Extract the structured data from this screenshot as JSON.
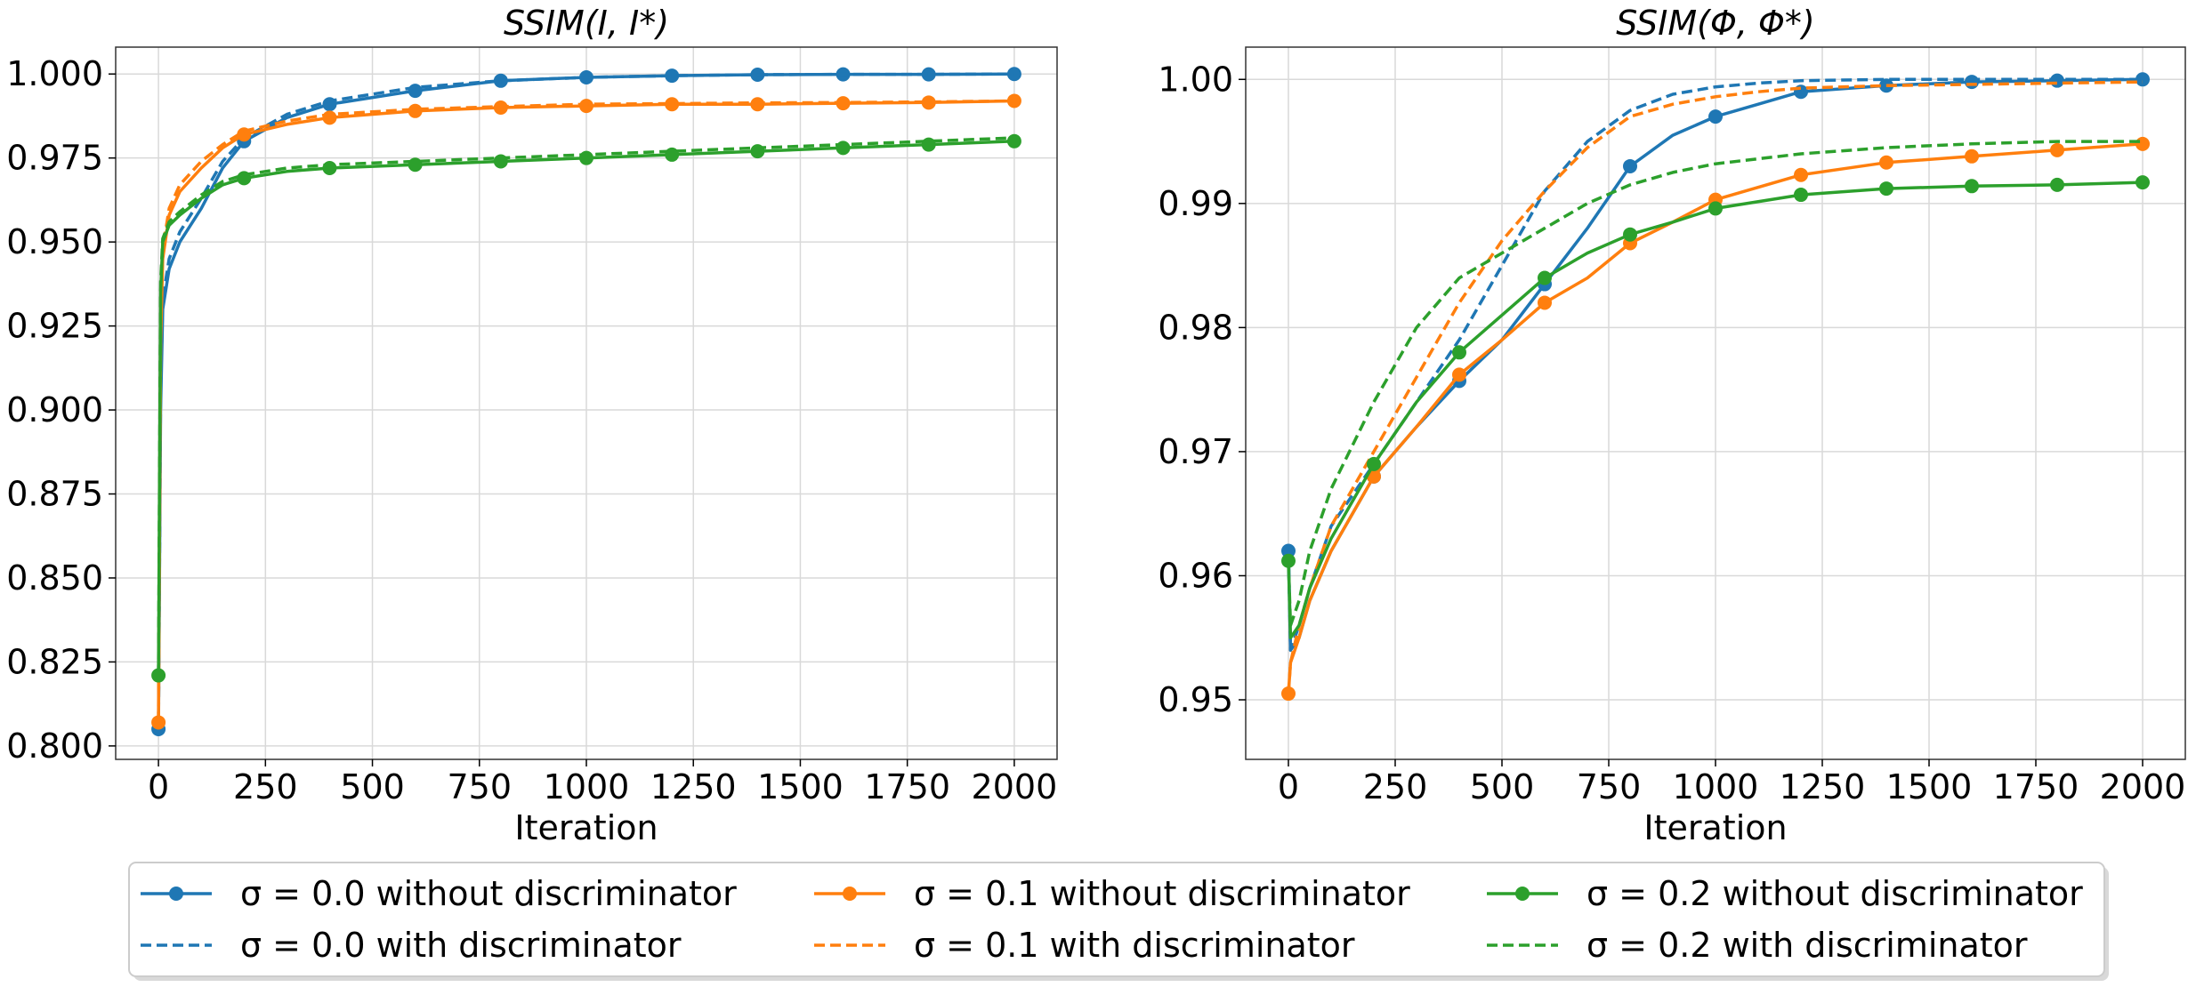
{
  "colors": {
    "s0": "#1f77b4",
    "s1": "#ff7f0e",
    "s2": "#2ca02c",
    "grid": "#d9d9d9",
    "frame": "#333333"
  },
  "legend": {
    "placement": "bottom-center",
    "entries": [
      {
        "label": "σ = 0.0 without discriminator",
        "color": "#1f77b4",
        "style": "solid-marker"
      },
      {
        "label": "σ = 0.0 with discriminator",
        "color": "#1f77b4",
        "style": "dashed"
      },
      {
        "label": "σ = 0.1 without discriminator",
        "color": "#ff7f0e",
        "style": "solid-marker"
      },
      {
        "label": "σ = 0.1 with discriminator",
        "color": "#ff7f0e",
        "style": "dashed"
      },
      {
        "label": "σ = 0.2 without discriminator",
        "color": "#2ca02c",
        "style": "solid-marker"
      },
      {
        "label": "σ = 0.2 with discriminator",
        "color": "#2ca02c",
        "style": "dashed"
      }
    ]
  },
  "chart_data": [
    {
      "type": "line",
      "title": "SSIM(I, I*)",
      "xlabel": "Iteration",
      "ylabel": "",
      "xlim": [
        -100,
        2100
      ],
      "ylim": [
        0.796,
        1.008
      ],
      "xticks": [
        0,
        250,
        500,
        750,
        1000,
        1250,
        1500,
        1750,
        2000
      ],
      "yticks": [
        0.8,
        0.825,
        0.85,
        0.875,
        0.9,
        0.925,
        0.95,
        0.975,
        1.0
      ],
      "ytick_labels": [
        "0.800",
        "0.825",
        "0.850",
        "0.875",
        "0.900",
        "0.925",
        "0.950",
        "0.975",
        "1.000"
      ],
      "grid": true,
      "series": [
        {
          "name": "σ = 0.0 without discriminator",
          "color": "#1f77b4",
          "dashed": false,
          "markers": true,
          "x": [
            0,
            5,
            10,
            25,
            50,
            100,
            150,
            200,
            300,
            400,
            600,
            800,
            1000,
            1200,
            1400,
            1600,
            1800,
            2000
          ],
          "y": [
            0.805,
            0.9,
            0.93,
            0.942,
            0.95,
            0.96,
            0.972,
            0.98,
            0.987,
            0.991,
            0.995,
            0.998,
            0.999,
            0.9995,
            0.9998,
            0.9999,
            0.9999,
            1.0
          ]
        },
        {
          "name": "σ = 0.0 with discriminator",
          "color": "#1f77b4",
          "dashed": true,
          "markers": false,
          "x": [
            0,
            5,
            10,
            25,
            50,
            100,
            150,
            200,
            300,
            400,
            600,
            800,
            1000,
            1200,
            1400,
            1600,
            1800,
            2000
          ],
          "y": [
            0.805,
            0.905,
            0.933,
            0.945,
            0.953,
            0.963,
            0.974,
            0.981,
            0.988,
            0.992,
            0.996,
            0.998,
            0.999,
            0.9995,
            0.9998,
            0.9999,
            0.9999,
            1.0
          ]
        },
        {
          "name": "σ = 0.1 without discriminator",
          "color": "#ff7f0e",
          "dashed": false,
          "markers": true,
          "x": [
            0,
            5,
            10,
            25,
            50,
            100,
            150,
            200,
            300,
            400,
            600,
            800,
            1000,
            1200,
            1400,
            1600,
            1800,
            2000
          ],
          "y": [
            0.807,
            0.92,
            0.945,
            0.958,
            0.965,
            0.972,
            0.978,
            0.982,
            0.985,
            0.987,
            0.989,
            0.99,
            0.9905,
            0.991,
            0.991,
            0.9913,
            0.9915,
            0.992
          ]
        },
        {
          "name": "σ = 0.1 with discriminator",
          "color": "#ff7f0e",
          "dashed": true,
          "markers": false,
          "x": [
            0,
            5,
            10,
            25,
            50,
            100,
            150,
            200,
            300,
            400,
            600,
            800,
            1000,
            1200,
            1400,
            1600,
            1800,
            2000
          ],
          "y": [
            0.807,
            0.925,
            0.948,
            0.96,
            0.967,
            0.974,
            0.979,
            0.983,
            0.986,
            0.988,
            0.9895,
            0.9903,
            0.991,
            0.9912,
            0.9914,
            0.9915,
            0.9917,
            0.992
          ]
        },
        {
          "name": "σ = 0.2 without discriminator",
          "color": "#2ca02c",
          "dashed": false,
          "markers": true,
          "x": [
            0,
            5,
            10,
            25,
            50,
            100,
            150,
            200,
            300,
            400,
            600,
            800,
            1000,
            1200,
            1400,
            1600,
            1800,
            2000
          ],
          "y": [
            0.821,
            0.935,
            0.95,
            0.955,
            0.958,
            0.963,
            0.967,
            0.969,
            0.971,
            0.972,
            0.973,
            0.974,
            0.975,
            0.976,
            0.977,
            0.978,
            0.979,
            0.98
          ]
        },
        {
          "name": "σ = 0.2 with discriminator",
          "color": "#2ca02c",
          "dashed": true,
          "markers": false,
          "x": [
            0,
            5,
            10,
            25,
            50,
            100,
            150,
            200,
            300,
            400,
            600,
            800,
            1000,
            1200,
            1400,
            1600,
            1800,
            2000
          ],
          "y": [
            0.821,
            0.938,
            0.951,
            0.956,
            0.959,
            0.964,
            0.968,
            0.97,
            0.972,
            0.973,
            0.974,
            0.975,
            0.976,
            0.977,
            0.978,
            0.979,
            0.98,
            0.981
          ]
        }
      ]
    },
    {
      "type": "line",
      "title": "SSIM(Φ, Φ*)",
      "xlabel": "Iteration",
      "ylabel": "",
      "xlim": [
        -100,
        2100
      ],
      "ylim": [
        0.9452,
        1.0026
      ],
      "xticks": [
        0,
        250,
        500,
        750,
        1000,
        1250,
        1500,
        1750,
        2000
      ],
      "yticks": [
        0.95,
        0.96,
        0.97,
        0.98,
        0.99,
        1.0
      ],
      "ytick_labels": [
        "0.95",
        "0.96",
        "0.97",
        "0.98",
        "0.99",
        "1.00"
      ],
      "grid": true,
      "series": [
        {
          "name": "σ = 0.0 without discriminator",
          "color": "#1f77b4",
          "dashed": false,
          "markers": true,
          "x": [
            0,
            5,
            25,
            50,
            100,
            200,
            300,
            400,
            500,
            600,
            700,
            800,
            900,
            1000,
            1100,
            1200,
            1400,
            1600,
            1800,
            2000
          ],
          "y": [
            0.962,
            0.954,
            0.955,
            0.958,
            0.962,
            0.968,
            0.972,
            0.9757,
            0.979,
            0.9835,
            0.988,
            0.993,
            0.9955,
            0.997,
            0.998,
            0.999,
            0.9995,
            0.9998,
            0.9999,
            1.0
          ]
        },
        {
          "name": "σ = 0.0 with discriminator",
          "color": "#1f77b4",
          "dashed": true,
          "markers": false,
          "x": [
            0,
            5,
            25,
            50,
            100,
            200,
            300,
            400,
            500,
            600,
            700,
            800,
            900,
            1000,
            1100,
            1200,
            1400,
            1600,
            1800,
            2000
          ],
          "y": [
            0.962,
            0.954,
            0.956,
            0.959,
            0.964,
            0.969,
            0.974,
            0.979,
            0.985,
            0.991,
            0.995,
            0.9975,
            0.9988,
            0.9994,
            0.9997,
            0.9999,
            1.0,
            1.0,
            1.0,
            1.0
          ]
        },
        {
          "name": "σ = 0.1 without discriminator",
          "color": "#ff7f0e",
          "dashed": false,
          "markers": true,
          "x": [
            0,
            5,
            25,
            50,
            100,
            200,
            300,
            400,
            500,
            600,
            700,
            800,
            900,
            1000,
            1200,
            1400,
            1600,
            1800,
            2000
          ],
          "y": [
            0.9505,
            0.953,
            0.955,
            0.958,
            0.962,
            0.968,
            0.972,
            0.9762,
            0.979,
            0.982,
            0.984,
            0.9868,
            0.9885,
            0.9903,
            0.9923,
            0.9933,
            0.9938,
            0.9943,
            0.9948
          ]
        },
        {
          "name": "σ = 0.1 with discriminator",
          "color": "#ff7f0e",
          "dashed": true,
          "markers": false,
          "x": [
            0,
            5,
            25,
            50,
            100,
            200,
            300,
            400,
            500,
            600,
            700,
            800,
            900,
            1000,
            1100,
            1200,
            1400,
            1600,
            1800,
            2000
          ],
          "y": [
            0.9505,
            0.953,
            0.956,
            0.959,
            0.964,
            0.97,
            0.976,
            0.982,
            0.987,
            0.991,
            0.9945,
            0.997,
            0.998,
            0.9986,
            0.999,
            0.9993,
            0.9995,
            0.9996,
            0.9997,
            0.9998
          ]
        },
        {
          "name": "σ = 0.2 without discriminator",
          "color": "#2ca02c",
          "dashed": false,
          "markers": true,
          "x": [
            0,
            5,
            25,
            50,
            100,
            200,
            300,
            400,
            500,
            600,
            700,
            800,
            900,
            1000,
            1200,
            1400,
            1600,
            1800,
            2000
          ],
          "y": [
            0.9612,
            0.955,
            0.956,
            0.959,
            0.963,
            0.969,
            0.974,
            0.978,
            0.981,
            0.984,
            0.986,
            0.9875,
            0.9885,
            0.9896,
            0.9907,
            0.9912,
            0.9914,
            0.9915,
            0.9917
          ]
        },
        {
          "name": "σ = 0.2 with discriminator",
          "color": "#2ca02c",
          "dashed": true,
          "markers": false,
          "x": [
            0,
            5,
            25,
            50,
            100,
            200,
            300,
            400,
            500,
            600,
            700,
            800,
            900,
            1000,
            1200,
            1400,
            1600,
            1800,
            2000
          ],
          "y": [
            0.9612,
            0.956,
            0.958,
            0.962,
            0.967,
            0.974,
            0.98,
            0.984,
            0.986,
            0.988,
            0.99,
            0.9915,
            0.9925,
            0.9932,
            0.994,
            0.9945,
            0.9948,
            0.995,
            0.995
          ]
        }
      ]
    }
  ]
}
